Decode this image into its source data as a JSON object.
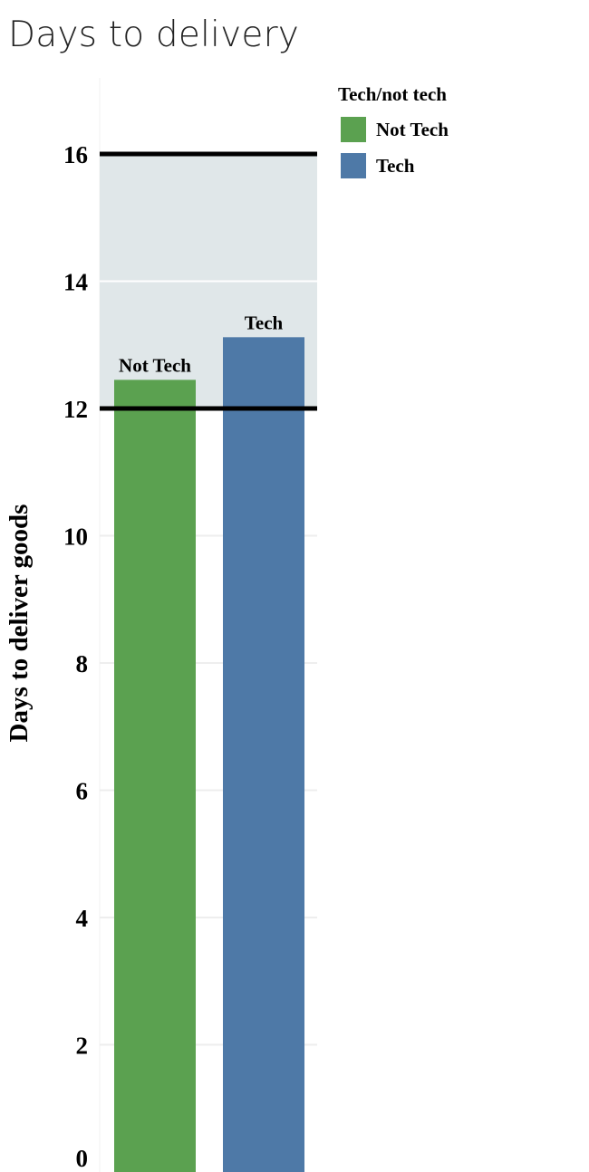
{
  "title": "Days to delivery",
  "chart_data": {
    "type": "bar",
    "title": "Days to delivery",
    "xlabel": "",
    "ylabel": "Days to deliver goods",
    "categories": [
      "Not Tech",
      "Tech"
    ],
    "values": [
      12.45,
      13.12
    ],
    "colors": [
      "#5ba150",
      "#4e79a7"
    ],
    "data_labels": [
      "Not Tech",
      "Tech"
    ],
    "ylim": [
      0,
      17.3
    ],
    "yticks": [
      0,
      2,
      4,
      6,
      8,
      10,
      12,
      14,
      16
    ],
    "reference_lines": [
      12,
      16
    ],
    "reference_band": [
      12,
      16
    ],
    "band_color": "#e0e7e9",
    "grid": true,
    "legend": {
      "title": "Tech/not tech",
      "placement": "top-right",
      "items": [
        {
          "label": "Not Tech",
          "color": "#5ba150"
        },
        {
          "label": "Tech",
          "color": "#4e79a7"
        }
      ]
    }
  }
}
